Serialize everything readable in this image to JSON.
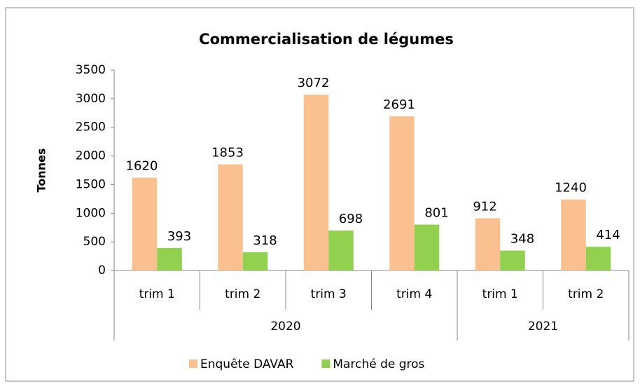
{
  "chart_data": {
    "type": "bar",
    "title": "Commercialisation de légumes",
    "y_label": "Tonnes",
    "groups": [
      {
        "name": "2020",
        "categories": [
          "trim 1",
          "trim 2",
          "trim 3",
          "trim 4"
        ]
      },
      {
        "name": "2021",
        "categories": [
          "trim 1",
          "trim 2"
        ]
      }
    ],
    "series": [
      {
        "name": "Enquête DAVAR",
        "color": "#fac090",
        "values": [
          1620,
          1853,
          3072,
          2691,
          912,
          1240
        ]
      },
      {
        "name": "Marché de gros",
        "color": "#92d050",
        "values": [
          393,
          318,
          698,
          801,
          348,
          414
        ]
      }
    ],
    "ylim": [
      0,
      3500
    ],
    "yticks": [
      0,
      500,
      1000,
      1500,
      2000,
      2500,
      3000,
      3500
    ],
    "legend": "bottom"
  }
}
